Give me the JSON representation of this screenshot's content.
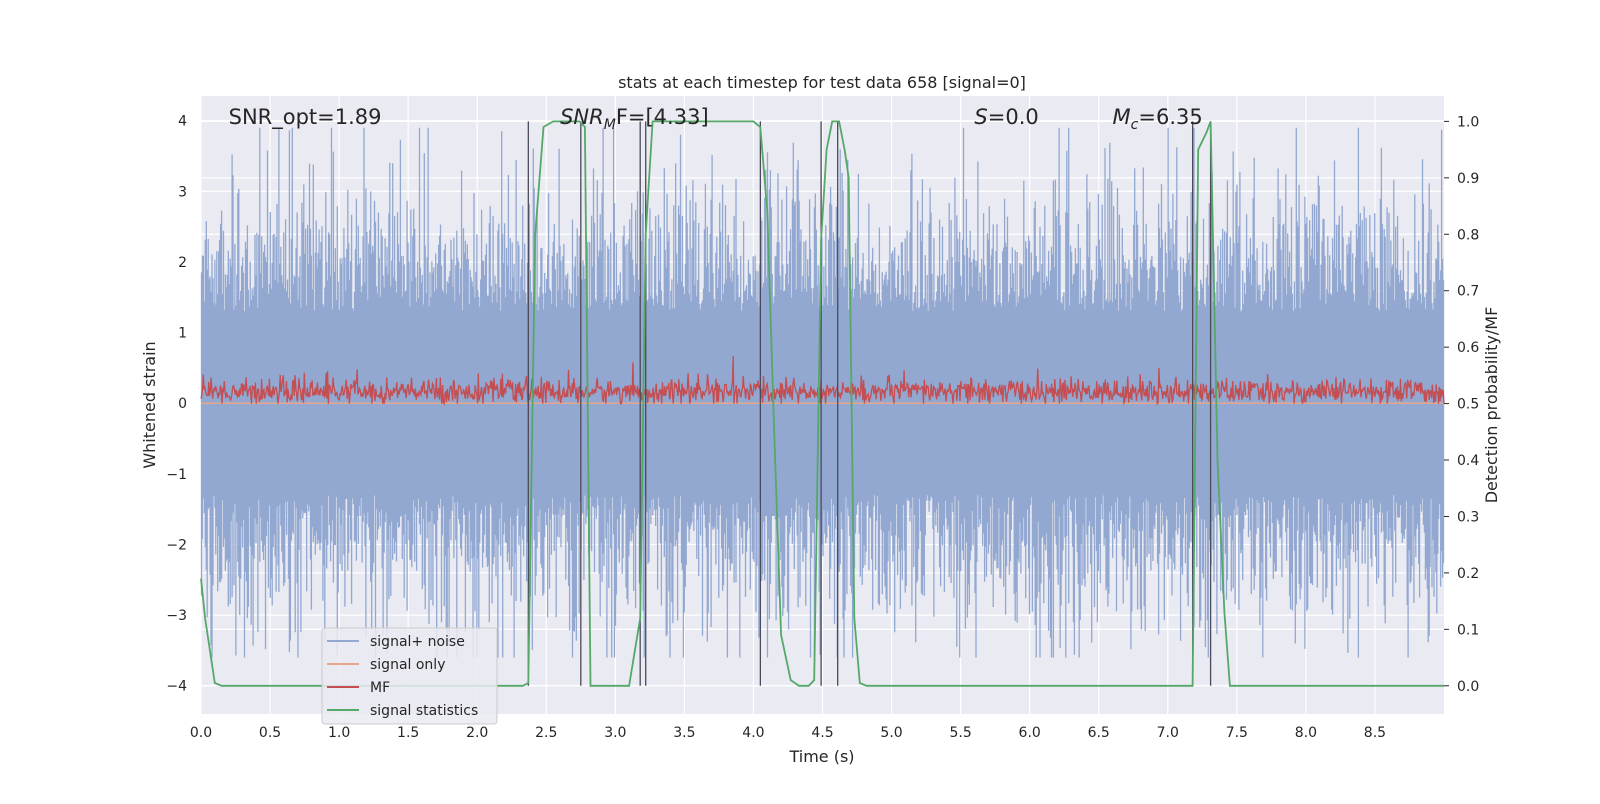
{
  "chart_data": {
    "type": "line",
    "title": "stats at each timestep for test data 658 [signal=0]",
    "xlabel": "Time (s)",
    "ylabel": "Whitened strain",
    "y2label": "Detection probability/MF",
    "xlim": [
      0.0,
      9.0
    ],
    "ylim": [
      -4.4,
      4.35
    ],
    "y2lim": [
      -0.05,
      1.045
    ],
    "xticks": [
      "0.0",
      "0.5",
      "1.0",
      "1.5",
      "2.0",
      "2.5",
      "3.0",
      "3.5",
      "4.0",
      "4.5",
      "5.0",
      "5.5",
      "6.0",
      "6.5",
      "7.0",
      "7.5",
      "8.0",
      "8.5"
    ],
    "yticks": [
      "−4",
      "−3",
      "−2",
      "−1",
      "0",
      "1",
      "2",
      "3",
      "4"
    ],
    "y2ticks": [
      "0.0",
      "0.1",
      "0.2",
      "0.3",
      "0.4",
      "0.5",
      "0.6",
      "0.7",
      "0.8",
      "0.9",
      "1.0"
    ],
    "grid": true,
    "legend_position": "lower-left",
    "annotations": [
      {
        "text": "SNR_opt=1.89",
        "x": 0.2
      },
      {
        "main": "SNR",
        "sub": "M",
        "rest": "F=[4.33]",
        "x": 2.6
      },
      {
        "main": "S",
        "rest": "=0.0",
        "x": 5.6
      },
      {
        "main": "M",
        "sub": "c",
        "rest": "=6.35",
        "x": 6.6
      }
    ],
    "vertical_lines_x": [
      2.37,
      2.75,
      3.18,
      3.22,
      4.05,
      4.49,
      4.61,
      7.18,
      7.31
    ],
    "series": [
      {
        "name": "signal+ noise",
        "color": "#92a8d1",
        "amplitude_range": [
          -3.6,
          3.9
        ]
      },
      {
        "name": "signal only",
        "color": "#e8a68a",
        "values": "zero"
      },
      {
        "name": "MF",
        "color": "#c44e52",
        "axis": "right",
        "range": [
          0.5,
          0.59
        ]
      },
      {
        "name": "signal statistics",
        "color": "#55a868",
        "axis": "right",
        "x": [
          0.0,
          0.03,
          0.06,
          0.1,
          0.15,
          2.0,
          2.33,
          2.37,
          2.42,
          2.48,
          2.55,
          2.7,
          2.74,
          2.78,
          2.82,
          2.9,
          3.0,
          3.1,
          3.18,
          3.22,
          3.27,
          3.6,
          3.9,
          4.0,
          4.05,
          4.1,
          4.15,
          4.2,
          4.27,
          4.33,
          4.4,
          4.44,
          4.49,
          4.53,
          4.57,
          4.62,
          4.66,
          4.69,
          4.73,
          4.77,
          4.82,
          5.5,
          6.5,
          7.18,
          7.22,
          7.28,
          7.31,
          7.36,
          7.41,
          7.45,
          8.0,
          9.0
        ],
        "y": [
          0.19,
          0.12,
          0.07,
          0.005,
          0.0,
          0.0,
          0.0,
          0.005,
          0.8,
          0.99,
          1.0,
          1.0,
          1.0,
          0.99,
          0.0,
          0.0,
          0.0,
          0.0,
          0.12,
          0.8,
          1.0,
          1.0,
          1.0,
          1.0,
          0.99,
          0.84,
          0.45,
          0.09,
          0.01,
          0.0,
          0.0,
          0.01,
          0.79,
          0.95,
          1.0,
          1.0,
          0.95,
          0.9,
          0.12,
          0.005,
          0.0,
          0.0,
          0.0,
          0.0,
          0.95,
          0.98,
          1.0,
          0.4,
          0.13,
          0.0,
          0.0,
          0.0
        ]
      }
    ]
  }
}
